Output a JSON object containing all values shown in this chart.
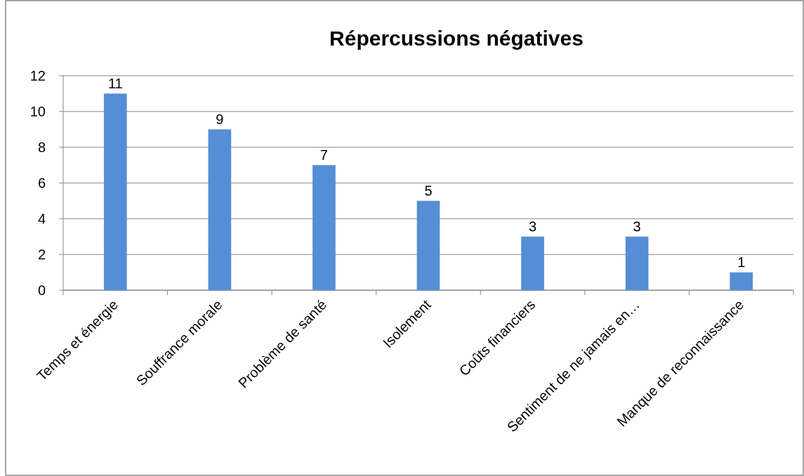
{
  "chart_data": {
    "type": "bar",
    "title": "Répercussions négatives",
    "categories": [
      "Temps et énergie",
      "Souffrance morale",
      "Problème de santé",
      "Isolement",
      "Coûts financiers",
      "Sentiment de ne jamais en…",
      "Manque de reconnaissance"
    ],
    "values": [
      11,
      9,
      7,
      5,
      3,
      3,
      1
    ],
    "color": "#558ed5",
    "ylim": [
      0,
      12
    ],
    "yticks": [
      0,
      2,
      4,
      6,
      8,
      10,
      12
    ],
    "grid": "y",
    "data_labels": true
  }
}
